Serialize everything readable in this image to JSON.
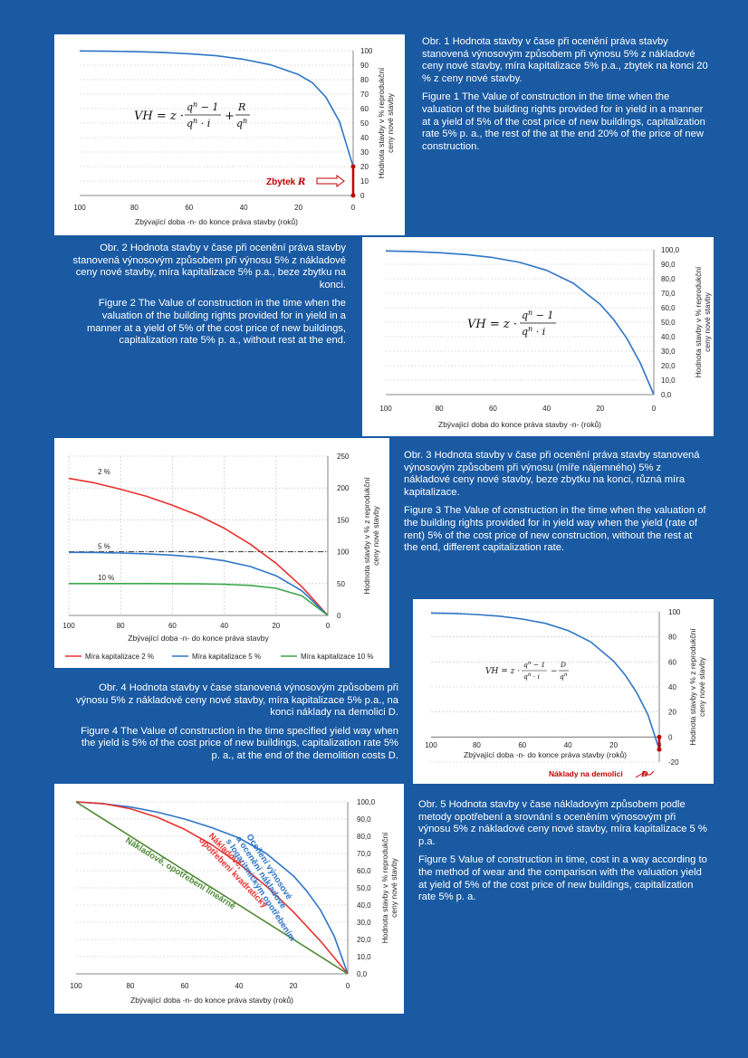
{
  "captions": {
    "fig1_cz": "Obr. 1 Hodnota stavby v čase při ocenění práva stavby stanovená výnosovým způsobem při výnosu 5% z nákladové ceny nové stavby, míra kapitalizace 5% p.a., zbytek na konci 20 % z ceny nové stavby.",
    "fig1_en": "Figure 1 The Value of construction in the time when the valuation of the building rights provided for in yield in a manner at a yield of 5% of the cost price of new buildings, capitalization rate 5% p. a., the rest of the at the end 20% of the price of new construction.",
    "fig2_cz": "Obr. 2 Hodnota stavby v čase při ocenění práva stavby stanovená výnosovým způsobem při výnosu 5% z nákladové ceny nové stavby, míra kapitalizace 5% p.a., beze zbytku na konci.",
    "fig2_en": "Figure 2 The Value of construction in the time when the valuation of the building rights provided for in yield in a manner at a yield of 5% of the cost price of new buildings, capitalization rate 5% p. a., without rest at the end.",
    "fig3_cz": "Obr. 3 Hodnota stavby v čase při ocenění práva stavby stanovená výnosovým způsobem při výnosu (míře nájemného) 5% z nákladové ceny nové stavby, beze zbytku na konci, různá míra kapitalizace.",
    "fig3_en": "Figure 3 The Value of construction in the time when the valuation of the building rights provided for in yield way when the yield (rate of rent) 5% of the cost price of new construction, without the rest at the end, different capitalization rate.",
    "fig4_cz": "Obr. 4 Hodnota stavby v čase stanovená výnosovým způsobem při výnosu 5% z nákladové ceny nové stavby, míra kapitalizace 5% p.a., na konci náklady na demolici D.",
    "fig4_en": "Figure 4 The Value of construction in the time specified yield way when the yield is 5% of the cost price of new buildings, capitalization rate 5% p. a., at the end of the demolition costs D.",
    "fig5_cz": "Obr. 5 Hodnota stavby v čase nákladovým způsobem podle metody opotřebení a srovnání s oceněním výnosovým při výnosu 5% z nákladové ceny nové stavby, míra kapitalizace 5 % p.a.",
    "fig5_en": "Figure 5 Value of construction in time, cost in a way according to the method of wear and the comparison with the valuation yield at yield of 5% of the cost price of new buildings, capitalization rate 5% p. a."
  },
  "chart_data": [
    {
      "id": "fig1",
      "type": "line",
      "xlabel": "Zbývající doba -n- do konce práva stavby (roků)",
      "ylabel": "Hodnota stavby v % reprodukční ceny nové stavby",
      "xlim": [
        100,
        0
      ],
      "ylim": [
        0,
        100
      ],
      "xticks": [
        "100",
        "80",
        "60",
        "40",
        "20",
        "0"
      ],
      "yticks": [
        "0",
        "10",
        "20",
        "30",
        "40",
        "50",
        "60",
        "70",
        "80",
        "90",
        "100"
      ],
      "annotation": "Zbytek",
      "annotation_symbol": "R",
      "series": [
        {
          "color": "#2e75c6",
          "x": [
            100,
            90,
            80,
            70,
            60,
            50,
            40,
            30,
            20,
            15,
            10,
            5,
            0
          ],
          "y": [
            99.8,
            99.6,
            99.3,
            98.8,
            97.9,
            96.5,
            94.0,
            90.2,
            83.5,
            78.0,
            68.0,
            51.0,
            20.0
          ]
        }
      ]
    },
    {
      "id": "fig2",
      "type": "line",
      "xlabel": "Zbývající doba do konce práva stavby -n- (roků)",
      "ylabel": "Hodnota stavby v % reprodukční ceny nové stavby",
      "xlim": [
        100,
        0
      ],
      "ylim": [
        0,
        100
      ],
      "xticks": [
        "100",
        "80",
        "60",
        "40",
        "20",
        "0"
      ],
      "yticks": [
        "0,0",
        "10,0",
        "20,0",
        "30,0",
        "40,0",
        "50,0",
        "60,0",
        "70,0",
        "80,0",
        "90,0",
        "100,0"
      ],
      "series": [
        {
          "color": "#2e75c6",
          "x": [
            100,
            90,
            80,
            70,
            60,
            50,
            40,
            30,
            20,
            15,
            10,
            5,
            0
          ],
          "y": [
            99.2,
            98.8,
            98.0,
            96.7,
            94.6,
            91.3,
            85.8,
            76.9,
            62.3,
            51.9,
            38.6,
            21.6,
            0
          ]
        }
      ]
    },
    {
      "id": "fig3",
      "type": "line",
      "xlabel": "Zbývající doba -n- do konce práva stavby",
      "ylabel": "Hodnota stavby v % z reprodukční ceny nové stavby",
      "xlim": [
        100,
        0
      ],
      "ylim": [
        0,
        250
      ],
      "xticks": [
        "100",
        "80",
        "60",
        "40",
        "20",
        "0"
      ],
      "yticks": [
        "0",
        "50",
        "100",
        "150",
        "200",
        "250"
      ],
      "series": [
        {
          "name": "Míra kapitalizace 2 %",
          "label": "2 %",
          "color": "#e8312f",
          "x": [
            100,
            90,
            80,
            70,
            60,
            50,
            40,
            30,
            20,
            10,
            0
          ],
          "y": [
            215,
            208,
            198,
            187,
            173,
            157,
            137,
            112,
            82,
            45,
            0
          ]
        },
        {
          "name": "Míra kapitalizace 5 %",
          "label": "5 %",
          "color": "#2e75c6",
          "x": [
            100,
            90,
            80,
            70,
            60,
            50,
            40,
            30,
            20,
            10,
            0
          ],
          "y": [
            99,
            98.8,
            98,
            96.7,
            94.6,
            91.3,
            85.8,
            76.9,
            62.3,
            38.6,
            0
          ]
        },
        {
          "name": "Míra kapitalizace 10 %",
          "label": "10 %",
          "color": "#3aa64a",
          "x": [
            100,
            90,
            80,
            70,
            60,
            50,
            40,
            30,
            20,
            10,
            0
          ],
          "y": [
            50,
            50,
            50,
            50,
            49.9,
            49.6,
            48.9,
            47.1,
            42.6,
            30.7,
            0
          ]
        }
      ],
      "reference_line": 100
    },
    {
      "id": "fig4",
      "type": "line",
      "xlabel": "Zbývající doba -n- do konce práva stavby (roků)",
      "ylabel": "Hodnota stavby v % z reprodukční ceny nové stavby",
      "xlim": [
        100,
        0
      ],
      "ylim": [
        -20,
        100
      ],
      "xticks": [
        "100",
        "80",
        "60",
        "40",
        "20",
        "0"
      ],
      "yticks": [
        "-20",
        "0",
        "20",
        "40",
        "60",
        "80",
        "100"
      ],
      "annotation": "Náklady na demolici",
      "annotation_symbol": "D",
      "series": [
        {
          "color": "#2e75c6",
          "x": [
            100,
            90,
            80,
            70,
            60,
            50,
            40,
            30,
            20,
            15,
            10,
            5,
            0
          ],
          "y": [
            99.0,
            98.7,
            97.8,
            96.5,
            94.2,
            90.8,
            85.1,
            75.9,
            60.6,
            49.7,
            35.8,
            18.0,
            -10.0
          ]
        }
      ]
    },
    {
      "id": "fig5",
      "type": "line",
      "xlabel": "Zbývající doba -n- do konce práva stavby (roků)",
      "ylabel": "Hodnota stavby v % reprodukční ceny nové stavby",
      "xlim": [
        100,
        0
      ],
      "ylim": [
        0,
        100
      ],
      "xticks": [
        "100",
        "80",
        "60",
        "40",
        "20",
        "0"
      ],
      "yticks": [
        "0,0",
        "10,0",
        "20,0",
        "30,0",
        "40,0",
        "50,0",
        "60,0",
        "70,0",
        "80,0",
        "90,0",
        "100,0"
      ],
      "series": [
        {
          "label": "Oceňení výnosové a ocenění nákladové s logaritmickým opotřebením",
          "color": "#2e75c6",
          "x": [
            100,
            90,
            80,
            70,
            60,
            50,
            40,
            30,
            20,
            15,
            10,
            5,
            0
          ],
          "y": [
            100,
            98.9,
            97,
            94,
            90,
            85,
            79,
            70,
            57,
            48,
            37,
            22,
            0
          ]
        },
        {
          "label": "Nákladově, opotřebení kvadratický",
          "color": "#e8312f",
          "x": [
            100,
            90,
            80,
            70,
            60,
            50,
            40,
            30,
            20,
            10,
            0
          ],
          "y": [
            100,
            99,
            96,
            91,
            84,
            75,
            64,
            51,
            36,
            19,
            0
          ]
        },
        {
          "label": "Nákladově, opotřebení lineárně",
          "color": "#4e8a35",
          "x": [
            100,
            0
          ],
          "y": [
            100,
            0
          ]
        }
      ]
    }
  ],
  "equations": {
    "fig1": "VH = z · (qⁿ − 1)/(qⁿ · i) + R/qⁿ",
    "fig2": "VH = z · (qⁿ − 1)/(qⁿ · i)",
    "fig4": "VH = z · (qⁿ − 1)/(qⁿ · i) − D/qⁿ"
  }
}
